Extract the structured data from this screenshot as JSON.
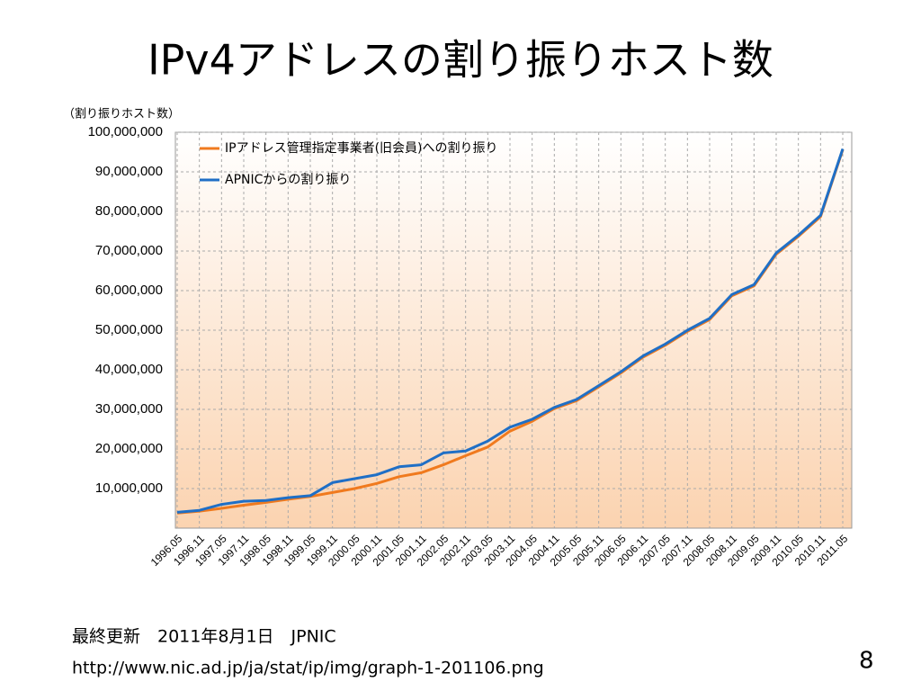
{
  "slide": {
    "title": "IPv4アドレスの割り振りホスト数",
    "footer_lines": [
      "最終更新　2011年8月1日　JPNIC",
      "http://www.nic.ad.jp/ja/stat/ip/img/graph-1-201106.png"
    ],
    "page_number": "8"
  },
  "chart_data": {
    "type": "line",
    "y_label": "（割り振りホスト数）",
    "categories": [
      "1996.05",
      "1996.11",
      "1997.05",
      "1997.11",
      "1998.05",
      "1998.11",
      "1999.05",
      "1999.11",
      "2000.05",
      "2000.11",
      "2001.05",
      "2001.11",
      "2002.05",
      "2002.11",
      "2003.05",
      "2003.11",
      "2004.05",
      "2004.11",
      "2005.05",
      "2005.11",
      "2006.05",
      "2006.11",
      "2007.05",
      "2007.11",
      "2008.05",
      "2008.11",
      "2009.05",
      "2009.11",
      "2010.05",
      "2010.11",
      "2011.05"
    ],
    "series": [
      {
        "name": "IPアドレス管理指定事業者(旧会員)への割り振り",
        "color": "#f07a1e",
        "values": [
          3800000,
          4300000,
          5000000,
          5800000,
          6500000,
          7300000,
          8000000,
          9000000,
          10000000,
          11300000,
          13000000,
          14000000,
          16000000,
          18300000,
          20500000,
          24500000,
          27000000,
          30200000,
          32200000,
          35700000,
          39200000,
          43200000,
          46200000,
          49700000,
          52700000,
          58700000,
          61200000,
          69200000,
          73700000,
          78700000,
          95600000
        ]
      },
      {
        "name": "APNICからの割り振り",
        "color": "#1f6fc6",
        "values": [
          4000000,
          4500000,
          6000000,
          6800000,
          7000000,
          7700000,
          8200000,
          11500000,
          12500000,
          13500000,
          15500000,
          16000000,
          19000000,
          19500000,
          22000000,
          25500000,
          27500000,
          30500000,
          32500000,
          36000000,
          39500000,
          43500000,
          46500000,
          50000000,
          53000000,
          59000000,
          61500000,
          69500000,
          74000000,
          79000000,
          95800000
        ]
      }
    ],
    "ylim": [
      0,
      100000000
    ],
    "yticks": [
      {
        "value": 10000000,
        "label": "10,000,000"
      },
      {
        "value": 20000000,
        "label": "20,000,000"
      },
      {
        "value": 30000000,
        "label": "30,000,000"
      },
      {
        "value": 40000000,
        "label": "40,000,000"
      },
      {
        "value": 50000000,
        "label": "50,000,000"
      },
      {
        "value": 60000000,
        "label": "60,000,000"
      },
      {
        "value": 70000000,
        "label": "70,000,000"
      },
      {
        "value": 80000000,
        "label": "80,000,000"
      },
      {
        "value": 90000000,
        "label": "90,000,000"
      },
      {
        "value": 100000000,
        "label": "100,000,000"
      }
    ],
    "grid": true,
    "legend": "top-left"
  }
}
